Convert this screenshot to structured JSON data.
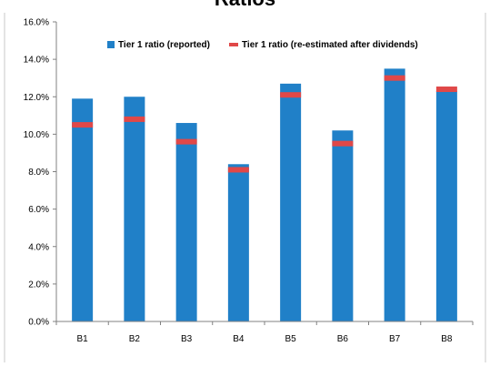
{
  "chart_data": {
    "type": "bar",
    "title": "Ratios",
    "categories": [
      "B1",
      "B2",
      "B3",
      "B4",
      "B5",
      "B6",
      "B7",
      "B8"
    ],
    "series": [
      {
        "name": "Tier 1 ratio (reported)",
        "kind": "bar",
        "color": "#2080c8",
        "values": [
          11.9,
          12.0,
          10.6,
          8.4,
          12.7,
          10.2,
          13.5,
          12.3
        ]
      },
      {
        "name": "Tier 1 ratio (re-estimated after dividends)",
        "kind": "marker",
        "color": "#e04848",
        "values": [
          10.5,
          10.8,
          9.6,
          8.1,
          12.1,
          9.5,
          13.0,
          12.4
        ]
      }
    ],
    "yticks": [
      "0.0%",
      "2.0%",
      "4.0%",
      "6.0%",
      "8.0%",
      "10.0%",
      "12.0%",
      "14.0%",
      "16.0%"
    ],
    "ylim": [
      0,
      16
    ],
    "grid": false,
    "legend": "top"
  }
}
